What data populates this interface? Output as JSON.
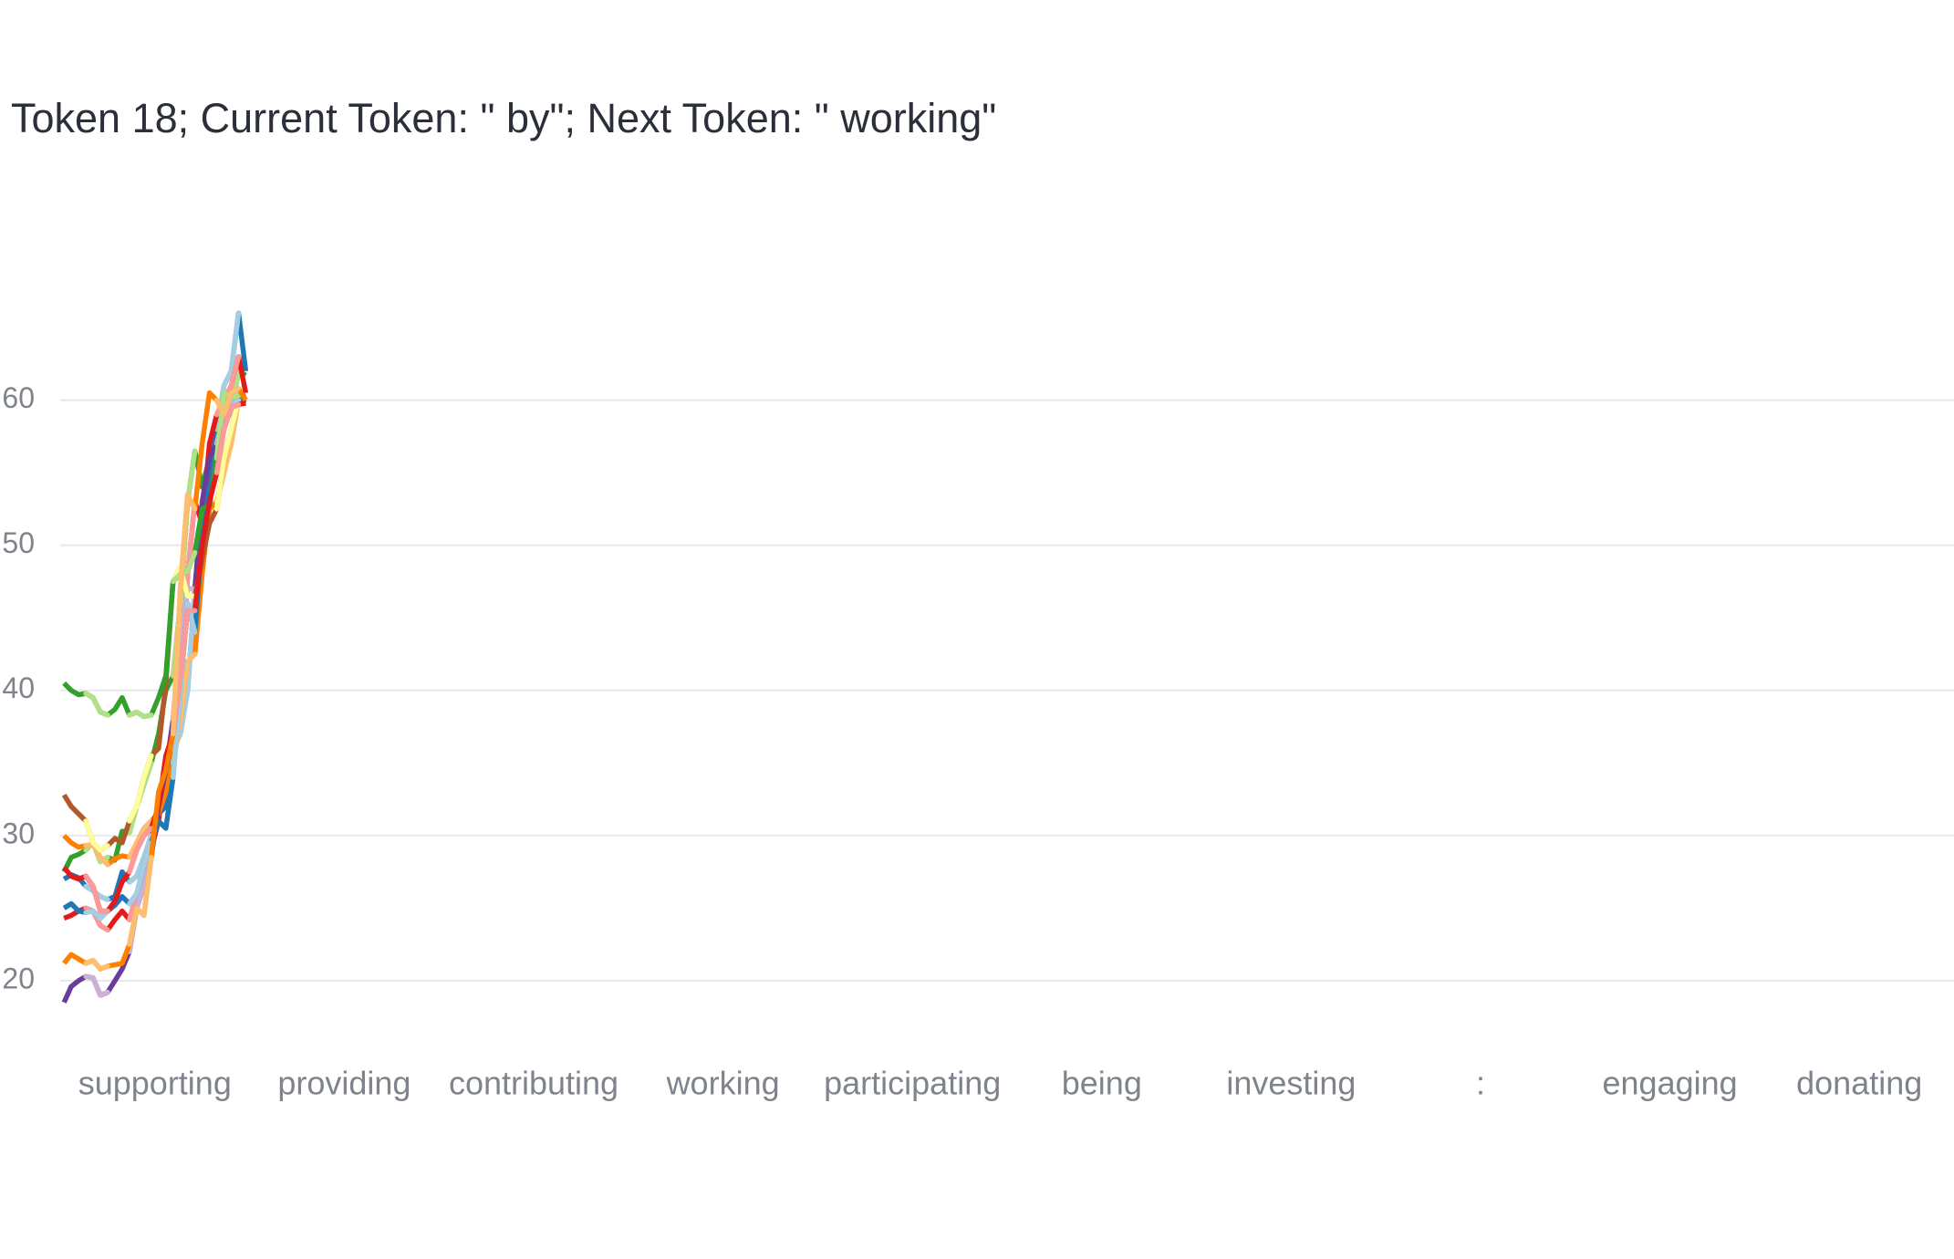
{
  "chart_data": {
    "type": "line",
    "title": "Token 18; Current Token: \" by\"; Next Token: \" working\"",
    "ylim": [
      15,
      70
    ],
    "yticks": [
      20,
      30,
      40,
      50,
      60
    ],
    "grid": true,
    "series": [
      {
        "name": "supporting",
        "color": "#1f78b4",
        "light_color": "#a6cee3",
        "values": [
          27,
          27.3,
          27.1,
          26.5,
          26.2,
          25.8,
          25.6,
          25.8,
          27.5,
          26.8,
          27.2,
          28.5,
          30,
          31.5,
          32,
          36,
          37,
          40,
          47,
          52,
          55,
          58,
          61,
          62,
          66,
          62
        ]
      },
      {
        "name": "providing",
        "color": "#33a02c",
        "light_color": "#b2df8a",
        "values": [
          27.5,
          28.5,
          28.7,
          29,
          29.5,
          28.2,
          28.5,
          28.3,
          30.3,
          30.2,
          32,
          33.5,
          35,
          37,
          40,
          41,
          46,
          53,
          56.5,
          54,
          56,
          56.5,
          60,
          59,
          62,
          61.7
        ]
      },
      {
        "name": "contributing",
        "color": "#e31a1c",
        "light_color": "#fb9a99",
        "values": [
          24.3,
          24.5,
          24.8,
          25,
          24.8,
          23.8,
          23.5,
          24.2,
          24.8,
          24.2,
          26,
          27.5,
          29,
          31,
          35,
          36,
          40,
          48,
          53,
          51.5,
          57,
          59,
          60,
          61,
          63,
          60.5
        ]
      },
      {
        "name": "working",
        "color": "#ff7f00",
        "light_color": "#fdbf6f",
        "values": [
          30,
          29.5,
          29.2,
          29.3,
          29.4,
          28.5,
          28,
          28.4,
          28.6,
          28.5,
          29.5,
          30.5,
          31,
          31.5,
          33,
          35,
          38,
          42,
          42.5,
          48,
          52.5,
          53,
          55,
          57,
          60,
          60
        ]
      },
      {
        "name": "participating",
        "color": "#6a3d9a",
        "light_color": "#cab2d6",
        "values": [
          18.5,
          19.6,
          20,
          20.3,
          20.2,
          19,
          19.2,
          20,
          20.8,
          22,
          25,
          26.5,
          28.5,
          32,
          34.5,
          38,
          43.5,
          47,
          47,
          53,
          56,
          57,
          59,
          60,
          60.2,
          60.3
        ]
      },
      {
        "name": "being",
        "color": "#b15928",
        "light_color": "#ffff99",
        "values": [
          32.8,
          32,
          31.5,
          31,
          29.5,
          29,
          29.3,
          29.8,
          29.5,
          31,
          32,
          34,
          35.5,
          36,
          40.5,
          47.5,
          48.5,
          46.5,
          46.5,
          49,
          51.5,
          52.5,
          56,
          58,
          60,
          60
        ]
      },
      {
        "name": "investing",
        "color": "#1f78b4",
        "light_color": "#a6cee3",
        "values": [
          25,
          25.3,
          24.8,
          24.7,
          24.8,
          24.3,
          24.8,
          25.2,
          25.8,
          25.3,
          26,
          28,
          29.5,
          31,
          30.5,
          34,
          40,
          46,
          44,
          50.5,
          54,
          55.5,
          58,
          59.5,
          60,
          59.8
        ]
      },
      {
        "name": ":",
        "color": "#33a02c",
        "light_color": "#b2df8a",
        "values": [
          40.5,
          40,
          39.7,
          39.8,
          39.5,
          38.5,
          38.3,
          38.7,
          39.5,
          38.3,
          38.5,
          38.2,
          38.3,
          39.5,
          41,
          47.5,
          48,
          48.2,
          49.5,
          52.5,
          52.7,
          56,
          60.5,
          60.2,
          60.3,
          60.2
        ]
      },
      {
        "name": "engaging",
        "color": "#e31a1c",
        "light_color": "#fb9a99",
        "values": [
          27.8,
          27.2,
          27,
          27.2,
          26.5,
          24.8,
          24.8,
          25.5,
          26.8,
          27.5,
          29,
          30,
          30.5,
          32,
          35.5,
          37,
          41,
          45.5,
          45.5,
          50,
          53,
          55,
          58,
          59.5,
          59.7,
          59.8
        ]
      },
      {
        "name": "donating",
        "color": "#ff7f00",
        "light_color": "#fdbf6f",
        "values": [
          21.2,
          21.8,
          21.5,
          21.2,
          21.4,
          20.8,
          21,
          21.1,
          21.2,
          22.5,
          25,
          24.5,
          28.5,
          33,
          34.5,
          37,
          47,
          53.5,
          52.5,
          57,
          60.5,
          60,
          59,
          60.5,
          60.8,
          60
        ]
      }
    ]
  }
}
